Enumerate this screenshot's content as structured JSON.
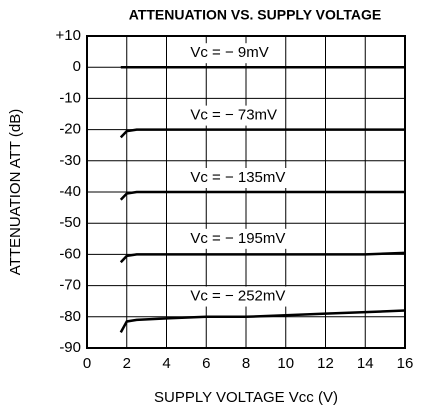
{
  "chart_data": {
    "type": "line",
    "title": "ATTENUATION VS. SUPPLY VOLTAGE",
    "x_label": "SUPPLY VOLTAGE Vcc (V)",
    "y_label": "ATTENUATION ATT (dB)",
    "x": [
      1.7,
      2,
      2.5,
      4,
      6,
      8,
      10,
      12,
      14,
      16
    ],
    "series": [
      {
        "name": "Vc = − 9mV",
        "color": "#000000",
        "values": [
          0,
          0,
          0,
          0,
          0,
          0,
          0,
          0,
          0,
          0
        ]
      },
      {
        "name": "Vc = − 73mV",
        "color": "#000000",
        "values": [
          -22.5,
          -20.5,
          -20,
          -20,
          -20,
          -20,
          -20,
          -20,
          -20,
          -20
        ]
      },
      {
        "name": "Vc = − 135mV",
        "color": "#000000",
        "values": [
          -42.5,
          -40.5,
          -40,
          -40,
          -40,
          -40,
          -40,
          -40,
          -40,
          -40
        ]
      },
      {
        "name": "Vc = − 195mV",
        "color": "#000000",
        "values": [
          -62.5,
          -60.5,
          -60,
          -60,
          -60,
          -60,
          -60,
          -60,
          -60,
          -59.5
        ]
      },
      {
        "name": "Vc = − 252mV",
        "color": "#000000",
        "values": [
          -85,
          -81.5,
          -81,
          -80.5,
          -80,
          -80,
          -79.5,
          -79,
          -78.5,
          -78
        ]
      }
    ],
    "xlim": [
      0,
      16
    ],
    "xticks": [
      0,
      2,
      4,
      6,
      8,
      10,
      12,
      14,
      16
    ],
    "ylim": [
      -90,
      10
    ],
    "yticks": [
      {
        "value": 10,
        "label": "+10"
      },
      0,
      -10,
      -20,
      -30,
      -40,
      -50,
      -60,
      -70,
      -80,
      -90
    ],
    "grid": true
  }
}
